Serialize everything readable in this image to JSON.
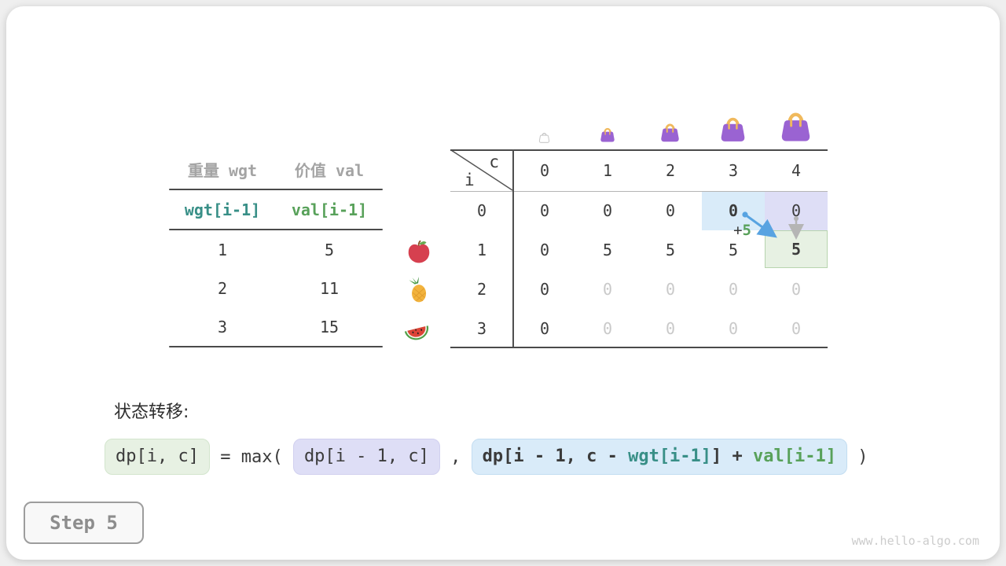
{
  "item_table": {
    "col_headers": [
      "重量 wgt",
      "价值 val"
    ],
    "index_row": [
      "wgt[i-1]",
      "val[i-1]"
    ],
    "rows": [
      [
        "1",
        "5"
      ],
      [
        "2",
        "11"
      ],
      [
        "3",
        "15"
      ]
    ]
  },
  "fruits": [
    "apple-icon",
    "pineapple-icon",
    "watermelon-icon"
  ],
  "dp_table": {
    "corner_col": "c",
    "corner_row": "i",
    "col_headers": [
      "0",
      "1",
      "2",
      "3",
      "4"
    ],
    "row_headers": [
      "0",
      "1",
      "2",
      "3"
    ],
    "rows": [
      [
        "0",
        "0",
        "0",
        "0",
        "0"
      ],
      [
        "0",
        "5",
        "5",
        "5",
        "5"
      ],
      [
        "0",
        "0",
        "0",
        "0",
        "0"
      ],
      [
        "0",
        "0",
        "0",
        "0",
        "0"
      ]
    ],
    "cell_styles": [
      [
        "",
        "",
        "",
        "bold on-blue",
        "on-purple"
      ],
      [
        "",
        "",
        "",
        "",
        "bold on-green"
      ],
      [
        "",
        "muted",
        "muted",
        "muted",
        "muted"
      ],
      [
        "",
        "muted",
        "muted",
        "muted",
        "muted"
      ]
    ],
    "annotation_plus": "+",
    "annotation_value": "5"
  },
  "caption": "状态转移:",
  "formula": {
    "lhs": "dp[i, c]",
    "equals": " = max( ",
    "arg1": "dp[i - 1, c]",
    "separator": " , ",
    "arg2_prefix": "dp[i - 1, c - ",
    "arg2_wgt": "wgt[i-1]",
    "arg2_infix": "] + ",
    "arg2_val": "val[i-1]",
    "closing": " )"
  },
  "step_button": "Step 5",
  "watermark": "www.hello-algo.com",
  "colors": {
    "teal": "#388f87",
    "green": "#58a15a",
    "highlight_blue": "#d9ebf9",
    "highlight_purple": "#dedef6",
    "highlight_green": "#e7f1e3",
    "bag_purple": "#9a63d2",
    "bag_handle": "#f0b95c"
  }
}
